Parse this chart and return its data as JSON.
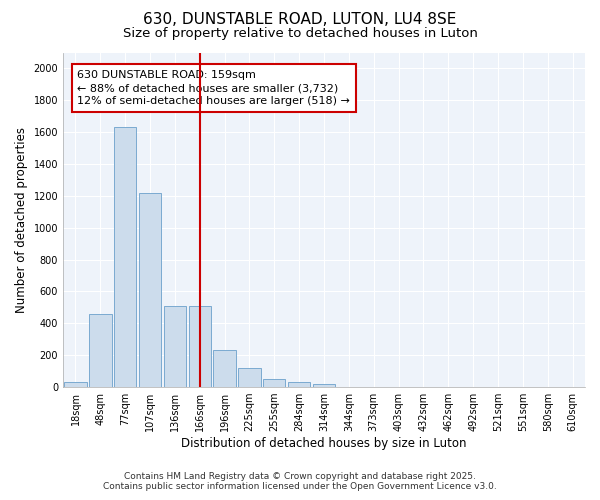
{
  "title": "630, DUNSTABLE ROAD, LUTON, LU4 8SE",
  "subtitle": "Size of property relative to detached houses in Luton",
  "xlabel": "Distribution of detached houses by size in Luton",
  "ylabel": "Number of detached properties",
  "categories": [
    "18sqm",
    "48sqm",
    "77sqm",
    "107sqm",
    "136sqm",
    "166sqm",
    "196sqm",
    "225sqm",
    "255sqm",
    "284sqm",
    "314sqm",
    "344sqm",
    "373sqm",
    "403sqm",
    "432sqm",
    "462sqm",
    "492sqm",
    "521sqm",
    "551sqm",
    "580sqm",
    "610sqm"
  ],
  "values": [
    30,
    460,
    1630,
    1220,
    510,
    510,
    230,
    120,
    50,
    30,
    20,
    0,
    0,
    0,
    0,
    0,
    0,
    0,
    0,
    0,
    0
  ],
  "bar_color": "#ccdcec",
  "bar_edge_color": "#7aaad0",
  "vline_x_index": 5,
  "vline_color": "#cc0000",
  "ylim": [
    0,
    2100
  ],
  "yticks": [
    0,
    200,
    400,
    600,
    800,
    1000,
    1200,
    1400,
    1600,
    1800,
    2000
  ],
  "annotation_text": "630 DUNSTABLE ROAD: 159sqm\n← 88% of detached houses are smaller (3,732)\n12% of semi-detached houses are larger (518) →",
  "annotation_box_facecolor": "#ffffff",
  "annotation_box_edgecolor": "#cc0000",
  "bg_color": "#ffffff",
  "plot_bg_color": "#eef3fa",
  "grid_color": "#ffffff",
  "footer_line1": "Contains HM Land Registry data © Crown copyright and database right 2025.",
  "footer_line2": "Contains public sector information licensed under the Open Government Licence v3.0.",
  "title_fontsize": 11,
  "subtitle_fontsize": 9.5,
  "label_fontsize": 8.5,
  "tick_fontsize": 7,
  "annotation_fontsize": 8,
  "footer_fontsize": 6.5
}
